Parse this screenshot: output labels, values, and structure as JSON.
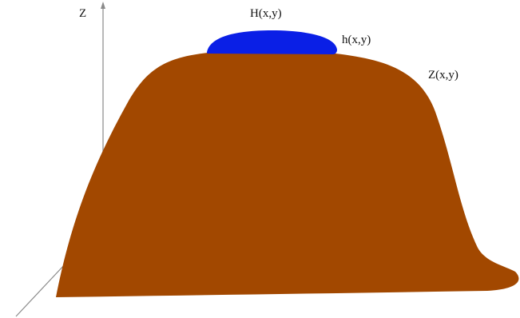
{
  "labels": {
    "z_axis": "Z",
    "surface_H": "H(x,y)",
    "thickness_h": "h(x,y)",
    "bed_Z": "Z(x,y)"
  },
  "colors": {
    "terrain": "#a24800",
    "ice": "#0a1fe6",
    "axis": "#8a8a8a",
    "text": "#111111",
    "background": "#ffffff"
  }
}
